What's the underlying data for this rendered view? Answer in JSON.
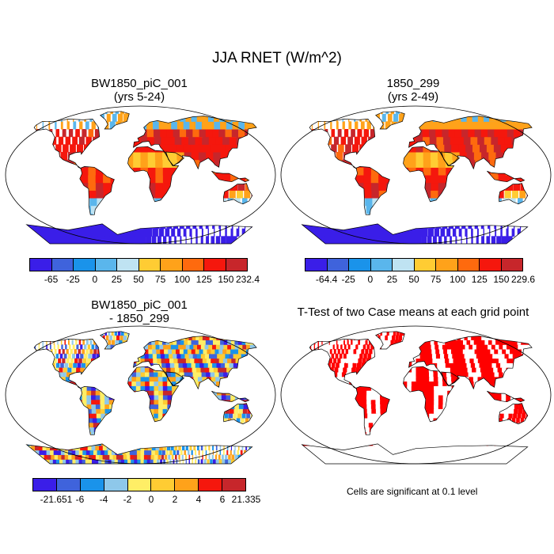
{
  "figure": {
    "title": "JJA RNET (W/m^2)",
    "panels": [
      {
        "title_line1": "BW1850_piC_001",
        "title_line2": "(yrs 5-24)",
        "variant": "rnet"
      },
      {
        "title_line1": "1850_299",
        "title_line2": "(yrs 2-49)",
        "variant": "rnet"
      },
      {
        "title_line1": "BW1850_piC_001",
        "title_line2": "- 1850_299",
        "variant": "diff"
      },
      {
        "title_line1": "T-Test of two Case means at each grid point",
        "title_line2": "",
        "variant": "ttest"
      }
    ],
    "colorbars": [
      {
        "colors": [
          "#3a1ee8",
          "#3f63dc",
          "#1a93ea",
          "#5ab6ec",
          "#bfe3f2",
          "#ffcc33",
          "#ffa21a",
          "#fe6a0e",
          "#f5170d",
          "#c7262b"
        ],
        "labels": [
          "-65",
          "-25",
          "0",
          "25",
          "50",
          "75",
          "100",
          "125",
          "150",
          "232.4"
        ]
      },
      {
        "colors": [
          "#3a1ee8",
          "#3f63dc",
          "#1a93ea",
          "#5ab6ec",
          "#bfe3f2",
          "#ffcc33",
          "#ffa21a",
          "#fe6a0e",
          "#f5170d",
          "#c7262b"
        ],
        "labels": [
          "-64.4",
          "-25",
          "0",
          "25",
          "50",
          "75",
          "100",
          "125",
          "150",
          "229.6"
        ]
      },
      {
        "colors": [
          "#3a1ee8",
          "#3f63dc",
          "#1a93ea",
          "#8ec8ea",
          "#ffee66",
          "#ffcc33",
          "#ffa21a",
          "#f5170d",
          "#c7262b"
        ],
        "labels": [
          "-21.651",
          "-6",
          "-4",
          "-2",
          "0",
          "2",
          "4",
          "6",
          "21.335"
        ]
      }
    ],
    "ttest_note": "Cells are significant at 0.1 level",
    "ttest_color": "#ff0000"
  }
}
